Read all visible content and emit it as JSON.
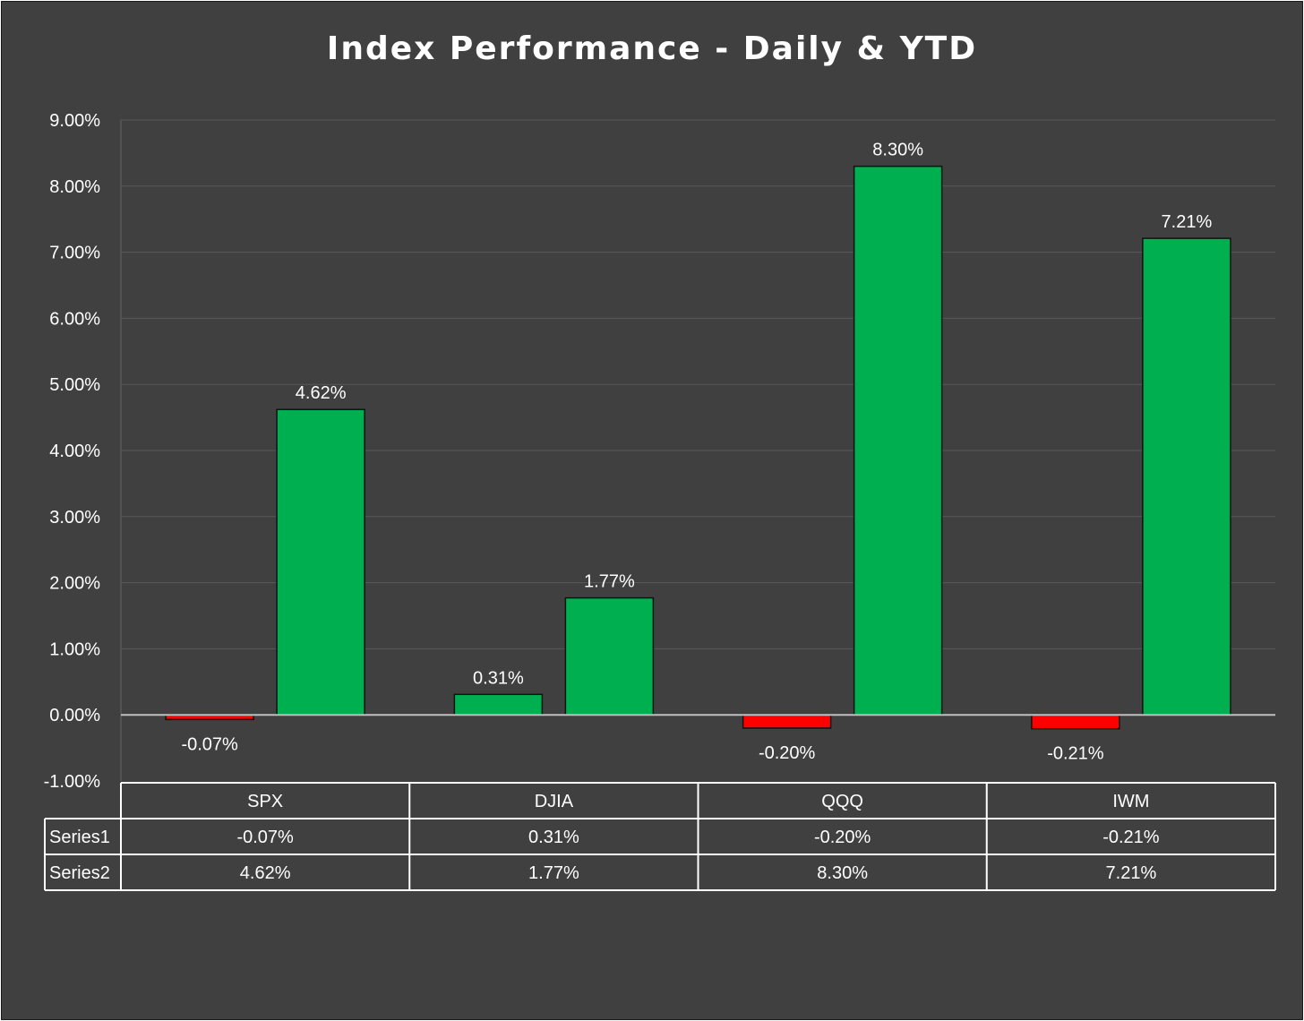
{
  "chart_data": {
    "type": "bar",
    "title": "Index Performance - Daily & YTD",
    "categories": [
      "SPX",
      "DJIA",
      "QQQ",
      "IWM"
    ],
    "series": [
      {
        "name": "Series1",
        "values": [
          -0.07,
          0.31,
          -0.2,
          -0.21
        ],
        "labels": [
          "-0.07%",
          "0.31%",
          "-0.20%",
          "-0.21%"
        ]
      },
      {
        "name": "Series2",
        "values": [
          4.62,
          1.77,
          8.3,
          7.21
        ],
        "labels": [
          "4.62%",
          "1.77%",
          "8.30%",
          "7.21%"
        ]
      }
    ],
    "ylim": [
      -1,
      9
    ],
    "yticks": [
      9,
      8,
      7,
      6,
      5,
      4,
      3,
      2,
      1,
      0,
      -1
    ],
    "ytick_labels": [
      "9.00%",
      "8.00%",
      "7.00%",
      "6.00%",
      "5.00%",
      "4.00%",
      "3.00%",
      "2.00%",
      "1.00%",
      "0.00%",
      "-1.00%"
    ],
    "grid": true,
    "data_table": true,
    "colors": {
      "background": "#404040",
      "positive": "#00b050",
      "negative": "#ff0000",
      "grid": "#595959",
      "zero_line": "#bfbfbf",
      "text": "#ffffff"
    }
  }
}
